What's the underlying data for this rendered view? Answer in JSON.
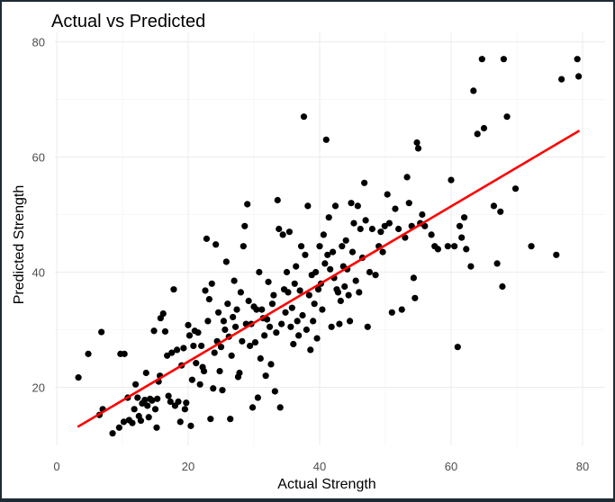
{
  "chart_data": {
    "type": "scatter",
    "title": "Actual vs Predicted",
    "xlabel": "Actual Strength",
    "ylabel": "Predicted Strength",
    "xlim": [
      0,
      82
    ],
    "ylim": [
      10,
      81
    ],
    "x_ticks": [
      0,
      20,
      40,
      60,
      80
    ],
    "y_ticks": [
      20,
      40,
      60,
      80
    ],
    "grid": true,
    "legend": "none",
    "point_color": "#000000",
    "line_color": "#ff0000",
    "regression_line": {
      "x": [
        3.3,
        79.4
      ],
      "y": [
        13.2,
        64.5
      ]
    },
    "points": [
      [
        3.3,
        21.7
      ],
      [
        4.8,
        25.8
      ],
      [
        6.5,
        15.2
      ],
      [
        6.8,
        29.6
      ],
      [
        7.0,
        16.2
      ],
      [
        8.5,
        12.0
      ],
      [
        9.5,
        13.0
      ],
      [
        9.7,
        25.8
      ],
      [
        10.3,
        25.8
      ],
      [
        10.2,
        14.0
      ],
      [
        10.8,
        18.2
      ],
      [
        11.0,
        14.3
      ],
      [
        11.5,
        13.8
      ],
      [
        11.8,
        16.2
      ],
      [
        12.0,
        20.5
      ],
      [
        12.3,
        18.2
      ],
      [
        12.5,
        15.0
      ],
      [
        12.8,
        14.2
      ],
      [
        13.0,
        17.2
      ],
      [
        13.4,
        17.8
      ],
      [
        13.6,
        22.5
      ],
      [
        13.8,
        16.8
      ],
      [
        14.0,
        14.8
      ],
      [
        14.2,
        18.0
      ],
      [
        14.5,
        17.7
      ],
      [
        14.8,
        29.8
      ],
      [
        15.0,
        16.2
      ],
      [
        15.2,
        13.0
      ],
      [
        15.3,
        18.0
      ],
      [
        15.5,
        21.0
      ],
      [
        15.7,
        22.0
      ],
      [
        15.8,
        32.0
      ],
      [
        16.2,
        32.8
      ],
      [
        16.5,
        29.7
      ],
      [
        16.8,
        25.5
      ],
      [
        17.0,
        18.5
      ],
      [
        17.3,
        17.5
      ],
      [
        17.5,
        26.0
      ],
      [
        17.8,
        37.0
      ],
      [
        18.0,
        16.8
      ],
      [
        18.3,
        26.5
      ],
      [
        18.5,
        17.5
      ],
      [
        18.8,
        14.0
      ],
      [
        19.0,
        23.8
      ],
      [
        19.3,
        26.8
      ],
      [
        19.5,
        16.2
      ],
      [
        19.7,
        17.3
      ],
      [
        20.0,
        30.8
      ],
      [
        20.2,
        29.0
      ],
      [
        20.4,
        13.3
      ],
      [
        20.6,
        21.3
      ],
      [
        20.8,
        27.2
      ],
      [
        21.0,
        29.8
      ],
      [
        21.2,
        24.2
      ],
      [
        21.5,
        29.5
      ],
      [
        21.8,
        20.5
      ],
      [
        22.0,
        27.2
      ],
      [
        22.2,
        23.5
      ],
      [
        22.4,
        22.8
      ],
      [
        22.6,
        36.8
      ],
      [
        22.8,
        45.8
      ],
      [
        23.0,
        31.5
      ],
      [
        23.2,
        35.3
      ],
      [
        23.4,
        14.5
      ],
      [
        23.6,
        38.0
      ],
      [
        23.8,
        19.8
      ],
      [
        24.0,
        26.0
      ],
      [
        24.2,
        44.8
      ],
      [
        24.4,
        28.0
      ],
      [
        24.6,
        33.0
      ],
      [
        24.8,
        22.8
      ],
      [
        25.0,
        27.0
      ],
      [
        25.2,
        19.5
      ],
      [
        25.4,
        31.5
      ],
      [
        25.6,
        30.0
      ],
      [
        25.8,
        41.8
      ],
      [
        26.0,
        34.5
      ],
      [
        26.2,
        28.8
      ],
      [
        26.4,
        14.5
      ],
      [
        26.6,
        25.5
      ],
      [
        26.8,
        32.2
      ],
      [
        27.0,
        38.5
      ],
      [
        27.2,
        30.5
      ],
      [
        27.4,
        33.5
      ],
      [
        27.6,
        21.8
      ],
      [
        27.8,
        22.5
      ],
      [
        28.0,
        36.5
      ],
      [
        28.2,
        28.0
      ],
      [
        28.4,
        44.5
      ],
      [
        28.6,
        48.0
      ],
      [
        28.8,
        31.0
      ],
      [
        29.0,
        51.8
      ],
      [
        29.2,
        35.0
      ],
      [
        29.4,
        27.2
      ],
      [
        29.6,
        31.0
      ],
      [
        29.8,
        16.5
      ],
      [
        30.0,
        34.0
      ],
      [
        30.2,
        27.8
      ],
      [
        30.4,
        33.5
      ],
      [
        30.6,
        18.2
      ],
      [
        30.8,
        40.0
      ],
      [
        31.0,
        25.0
      ],
      [
        31.2,
        33.5
      ],
      [
        31.4,
        32.0
      ],
      [
        31.6,
        29.0
      ],
      [
        31.8,
        22.0
      ],
      [
        32.0,
        31.8
      ],
      [
        32.2,
        38.3
      ],
      [
        32.4,
        30.5
      ],
      [
        32.6,
        24.0
      ],
      [
        32.8,
        34.5
      ],
      [
        33.0,
        36.0
      ],
      [
        33.2,
        19.3
      ],
      [
        33.4,
        29.5
      ],
      [
        33.6,
        52.5
      ],
      [
        33.8,
        47.5
      ],
      [
        34.0,
        16.5
      ],
      [
        34.2,
        31.0
      ],
      [
        34.4,
        46.5
      ],
      [
        34.6,
        37.0
      ],
      [
        34.8,
        33.0
      ],
      [
        35.0,
        40.0
      ],
      [
        35.2,
        36.5
      ],
      [
        35.4,
        47.0
      ],
      [
        35.6,
        30.5
      ],
      [
        35.8,
        33.8
      ],
      [
        36.0,
        27.5
      ],
      [
        36.2,
        38.0
      ],
      [
        36.4,
        41.0
      ],
      [
        36.6,
        31.5
      ],
      [
        36.8,
        29.0
      ],
      [
        37.0,
        36.8
      ],
      [
        37.2,
        44.5
      ],
      [
        37.4,
        32.5
      ],
      [
        37.6,
        67.0
      ],
      [
        37.8,
        43.0
      ],
      [
        38.0,
        30.0
      ],
      [
        38.2,
        51.5
      ],
      [
        38.4,
        36.0
      ],
      [
        38.6,
        26.5
      ],
      [
        38.8,
        39.5
      ],
      [
        39.0,
        31.5
      ],
      [
        39.2,
        34.5
      ],
      [
        39.4,
        40.0
      ],
      [
        39.6,
        28.5
      ],
      [
        39.8,
        37.0
      ],
      [
        40.0,
        44.5
      ],
      [
        40.2,
        38.0
      ],
      [
        40.4,
        33.5
      ],
      [
        40.6,
        46.5
      ],
      [
        40.8,
        41.5
      ],
      [
        41.0,
        63.0
      ],
      [
        41.2,
        43.0
      ],
      [
        41.4,
        49.5
      ],
      [
        41.6,
        40.5
      ],
      [
        41.8,
        30.5
      ],
      [
        42.0,
        43.5
      ],
      [
        42.2,
        39.0
      ],
      [
        42.4,
        51.5
      ],
      [
        42.6,
        37.0
      ],
      [
        42.8,
        36.5
      ],
      [
        43.0,
        31.0
      ],
      [
        43.2,
        35.0
      ],
      [
        43.4,
        44.5
      ],
      [
        43.6,
        41.0
      ],
      [
        43.8,
        37.5
      ],
      [
        44.0,
        45.5
      ],
      [
        44.2,
        40.5
      ],
      [
        44.4,
        36.0
      ],
      [
        44.6,
        31.5
      ],
      [
        44.8,
        52.0
      ],
      [
        45.0,
        43.5
      ],
      [
        45.2,
        48.5
      ],
      [
        45.5,
        38.5
      ],
      [
        45.8,
        51.5
      ],
      [
        46.0,
        36.5
      ],
      [
        46.2,
        47.5
      ],
      [
        46.5,
        42.5
      ],
      [
        46.8,
        55.5
      ],
      [
        47.0,
        49.0
      ],
      [
        47.3,
        30.5
      ],
      [
        47.6,
        40.0
      ],
      [
        48.0,
        47.5
      ],
      [
        48.5,
        39.5
      ],
      [
        49.0,
        44.5
      ],
      [
        49.3,
        47.0
      ],
      [
        49.6,
        43.5
      ],
      [
        49.9,
        48.0
      ],
      [
        50.3,
        53.5
      ],
      [
        50.6,
        48.5
      ],
      [
        51.0,
        33.0
      ],
      [
        51.5,
        51.0
      ],
      [
        52.0,
        47.5
      ],
      [
        52.5,
        33.5
      ],
      [
        53.0,
        46.0
      ],
      [
        53.3,
        56.5
      ],
      [
        53.6,
        52.0
      ],
      [
        54.0,
        48.0
      ],
      [
        54.3,
        39.0
      ],
      [
        54.5,
        35.5
      ],
      [
        54.8,
        62.5
      ],
      [
        55.0,
        61.5
      ],
      [
        55.3,
        48.5
      ],
      [
        55.6,
        50.0
      ],
      [
        56.0,
        48.0
      ],
      [
        57.0,
        46.5
      ],
      [
        57.5,
        44.5
      ],
      [
        58.0,
        44.0
      ],
      [
        59.5,
        44.5
      ],
      [
        60.0,
        56.0
      ],
      [
        60.5,
        44.5
      ],
      [
        61.0,
        27.0
      ],
      [
        61.3,
        48.0
      ],
      [
        61.6,
        46.0
      ],
      [
        62.0,
        49.5
      ],
      [
        62.3,
        44.0
      ],
      [
        63.0,
        41.0
      ],
      [
        63.4,
        71.5
      ],
      [
        64.0,
        64.0
      ],
      [
        64.7,
        77.0
      ],
      [
        65.0,
        65.0
      ],
      [
        66.5,
        51.5
      ],
      [
        67.0,
        41.5
      ],
      [
        67.5,
        50.5
      ],
      [
        67.8,
        37.5
      ],
      [
        68.0,
        77.0
      ],
      [
        68.5,
        67.0
      ],
      [
        69.8,
        54.5
      ],
      [
        72.2,
        44.5
      ],
      [
        76.0,
        43.0
      ],
      [
        76.8,
        73.5
      ],
      [
        79.2,
        77.0
      ],
      [
        79.4,
        74.0
      ]
    ]
  }
}
